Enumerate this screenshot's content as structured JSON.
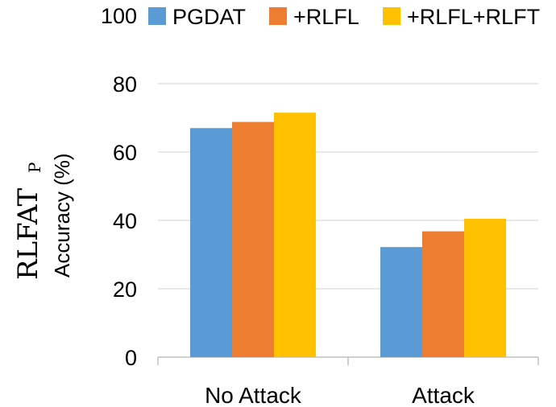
{
  "chart_data": {
    "type": "bar",
    "categories": [
      "No Attack",
      "Attack"
    ],
    "series": [
      {
        "name": "PGDAT",
        "values": [
          67,
          32.2
        ],
        "color": "#5B9BD5"
      },
      {
        "name": "+RLFL",
        "values": [
          68.8,
          36.8
        ],
        "color": "#ED7D31"
      },
      {
        "name": "+RLFL+RLFT",
        "values": [
          71.5,
          40.5
        ],
        "color": "#FFC000"
      }
    ],
    "ylabel": {
      "main": "RLFAT",
      "subscript": "P",
      "line2": "Accuracy  (%)"
    },
    "ylim": [
      0,
      100
    ],
    "yticks": [
      0,
      20,
      40,
      60,
      80,
      100
    ],
    "grid": true,
    "legend_position": "top"
  }
}
